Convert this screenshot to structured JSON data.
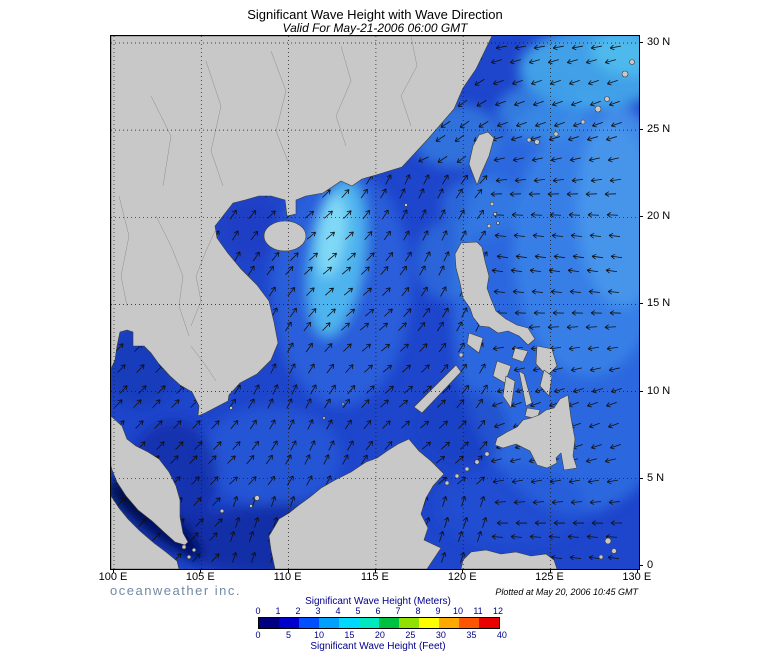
{
  "header": {
    "title": "Significant Wave Height with Wave Direction",
    "subtitle": "Valid For May-21-2006 06:00 GMT"
  },
  "map": {
    "x_axis_labels": [
      "100 E",
      "105 E",
      "110 E",
      "115 E",
      "120 E",
      "125 E",
      "130 E"
    ],
    "y_axis_labels": [
      "30 N",
      "25 N",
      "20 N",
      "15 N",
      "10 N",
      "5 N",
      "0"
    ]
  },
  "legend": {
    "meters_label": "Significant Wave Height (Meters)",
    "meters_ticks": [
      "0",
      "1",
      "2",
      "3",
      "4",
      "5",
      "6",
      "7",
      "8",
      "9",
      "10",
      "11",
      "12"
    ],
    "feet_label": "Significant Wave Height (Feet)",
    "feet_ticks": [
      "0",
      "5",
      "10",
      "15",
      "20",
      "25",
      "30",
      "35",
      "40"
    ],
    "colors": [
      "#000080",
      "#0000cd",
      "#0050ff",
      "#00a0ff",
      "#00d8ff",
      "#00e8c0",
      "#00c040",
      "#90e000",
      "#ffff00",
      "#ffa800",
      "#ff5400",
      "#e80000"
    ]
  },
  "footer": {
    "branding": "oceanweather inc.",
    "plotted": "Plotted at May 20, 2006 10:45 GMT"
  },
  "map_colors": {
    "ocean_base": "#1e46cc",
    "land": "#c8c8c8"
  },
  "chart_data": {
    "type": "heatmap",
    "title": "Significant Wave Height with Wave Direction",
    "valid_time": "May-21-2006 06:00 GMT",
    "lon_ticks": [
      "100 E",
      "105 E",
      "110 E",
      "115 E",
      "120 E",
      "125 E",
      "130 E"
    ],
    "lat_ticks": [
      "0",
      "5 N",
      "10 N",
      "15 N",
      "20 N",
      "25 N",
      "30 N"
    ],
    "scale_meters": [
      0,
      1,
      2,
      3,
      4,
      5,
      6,
      7,
      8,
      9,
      10,
      11,
      12
    ],
    "scale_feet": [
      0,
      5,
      10,
      15,
      20,
      25,
      30,
      35,
      40
    ],
    "legend_position": "bottom"
  }
}
